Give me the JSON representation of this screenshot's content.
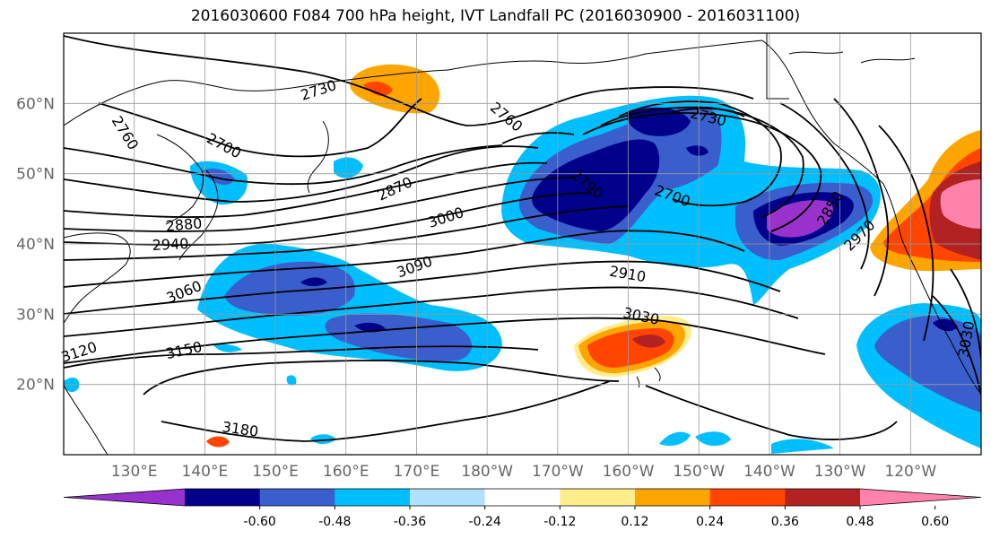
{
  "title": "2016030600 F084 700 hPa height, IVT Landfall PC (2016030900 - 2016031100)",
  "axes": {
    "lat_labels": [
      "60°N",
      "50°N",
      "40°N",
      "30°N",
      "20°N"
    ],
    "lon_labels": [
      "130°E",
      "140°E",
      "150°E",
      "160°E",
      "170°E",
      "180°W",
      "170°W",
      "160°W",
      "150°W",
      "140°W",
      "130°W",
      "120°W"
    ],
    "lat_values": [
      60,
      50,
      40,
      30,
      20
    ],
    "lon_values": [
      130,
      140,
      150,
      160,
      170,
      180,
      190,
      200,
      210,
      220,
      230,
      240
    ],
    "lon_range": [
      120,
      250
    ],
    "lat_range": [
      10,
      70
    ],
    "grid": true
  },
  "colorbar": {
    "tick_labels": [
      "-0.60",
      "-0.48",
      "-0.36",
      "-0.24",
      "-0.12",
      "0.12",
      "0.24",
      "0.36",
      "0.48",
      "0.60"
    ],
    "colors": [
      "#9932cc",
      "#00008b",
      "#3a5fcd",
      "#00bfff",
      "#b0e2ff",
      "#ffffff",
      "#ffec8b",
      "#ffa500",
      "#ff4500",
      "#b22222",
      "#ff82ab"
    ],
    "extend": "both"
  },
  "contour_labels": [
    "2730",
    "2760",
    "2700",
    "2760",
    "2730",
    "2870",
    "2880",
    "2940",
    "3000",
    "3090",
    "3060",
    "2790",
    "2700",
    "2850",
    "2910",
    "2970",
    "3030",
    "3150",
    "3120",
    "3180",
    "3030"
  ]
}
